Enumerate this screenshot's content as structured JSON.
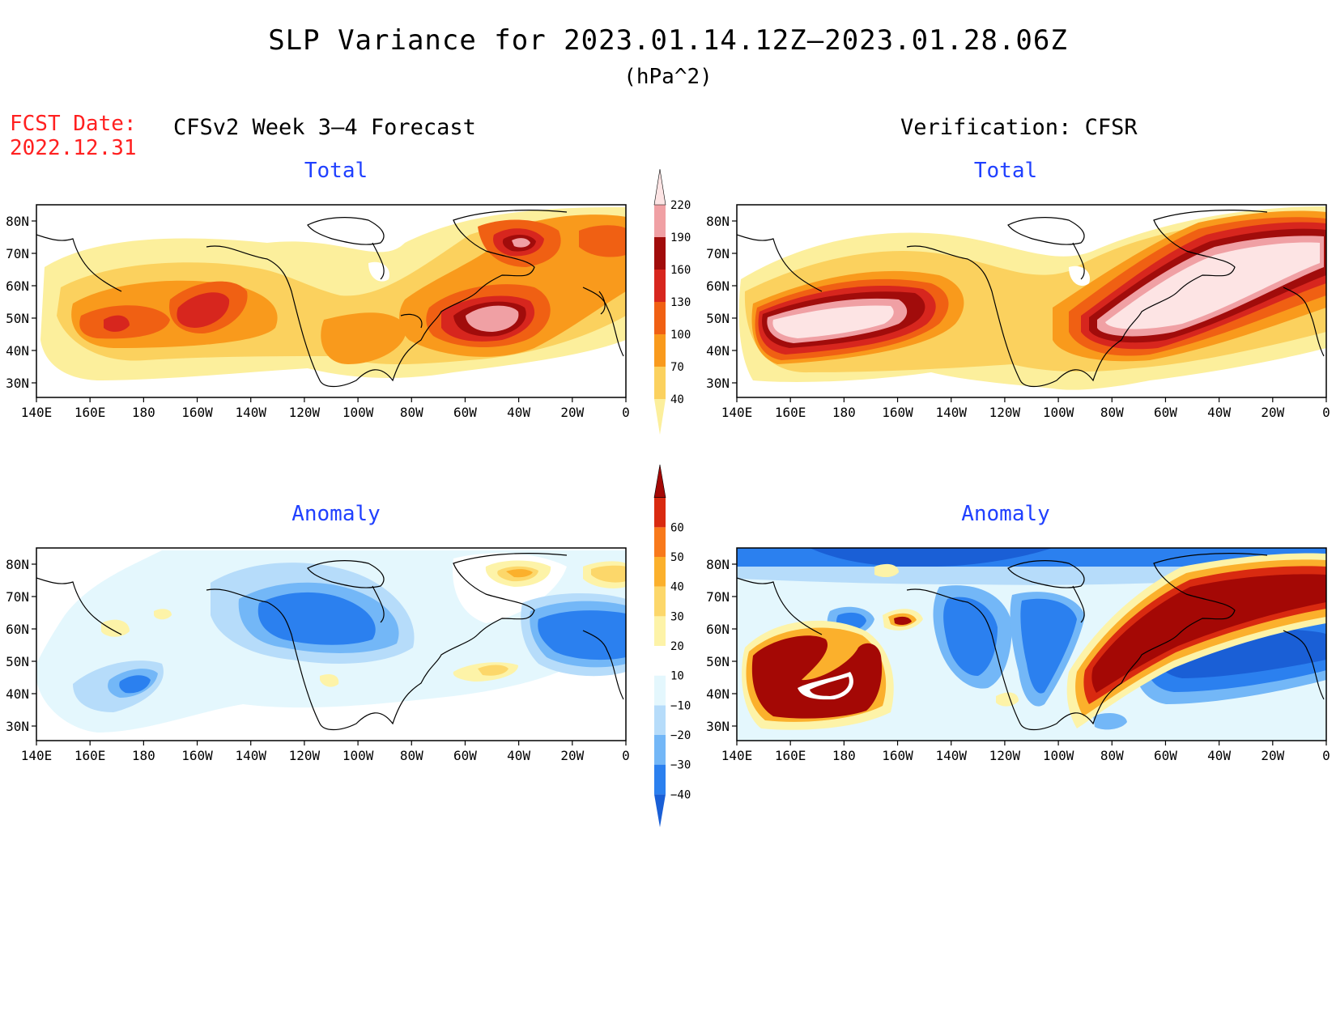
{
  "title": "SLP Variance for 2023.01.14.12Z–2023.01.28.06Z",
  "units": "(hPa^2)",
  "forecast_date_label": "FCST Date:",
  "forecast_date": "2022.12.31",
  "left_column_title": "CFSv2 Week 3–4 Forecast",
  "right_column_title": "Verification: CFSR",
  "map_axes": {
    "lat_labels": [
      "80N",
      "70N",
      "60N",
      "50N",
      "40N",
      "30N"
    ],
    "lon_labels": [
      "140E",
      "160E",
      "180",
      "160W",
      "140W",
      "120W",
      "100W",
      "80W",
      "60W",
      "40W",
      "20W",
      "0"
    ]
  },
  "panels": [
    {
      "id": "forecast-total",
      "subtitle": "Total"
    },
    {
      "id": "verification-total",
      "subtitle": "Total"
    },
    {
      "id": "forecast-anomaly",
      "subtitle": "Anomaly"
    },
    {
      "id": "verification-anomaly",
      "subtitle": "Anomaly"
    }
  ],
  "total_colorbar": {
    "levels": [
      "40",
      "70",
      "100",
      "130",
      "160",
      "190",
      "220"
    ],
    "colors": [
      "#fcef9c",
      "#fbd15e",
      "#f99a1c",
      "#f06013",
      "#d7261e",
      "#a10c0b",
      "#f0a0a4",
      "#fde4e4"
    ]
  },
  "anomaly_colorbar": {
    "levels": [
      "−40",
      "−30",
      "−20",
      "−10",
      "10",
      "20",
      "30",
      "40",
      "50",
      "60"
    ],
    "colors": [
      "#1a5fd6",
      "#2b80ef",
      "#73b7f7",
      "#b6dcfa",
      "#e4f7fd",
      "#ffffff",
      "#fdf3a8",
      "#fcd76a",
      "#fbb02c",
      "#f8791b",
      "#d92a10",
      "#a40805"
    ]
  }
}
